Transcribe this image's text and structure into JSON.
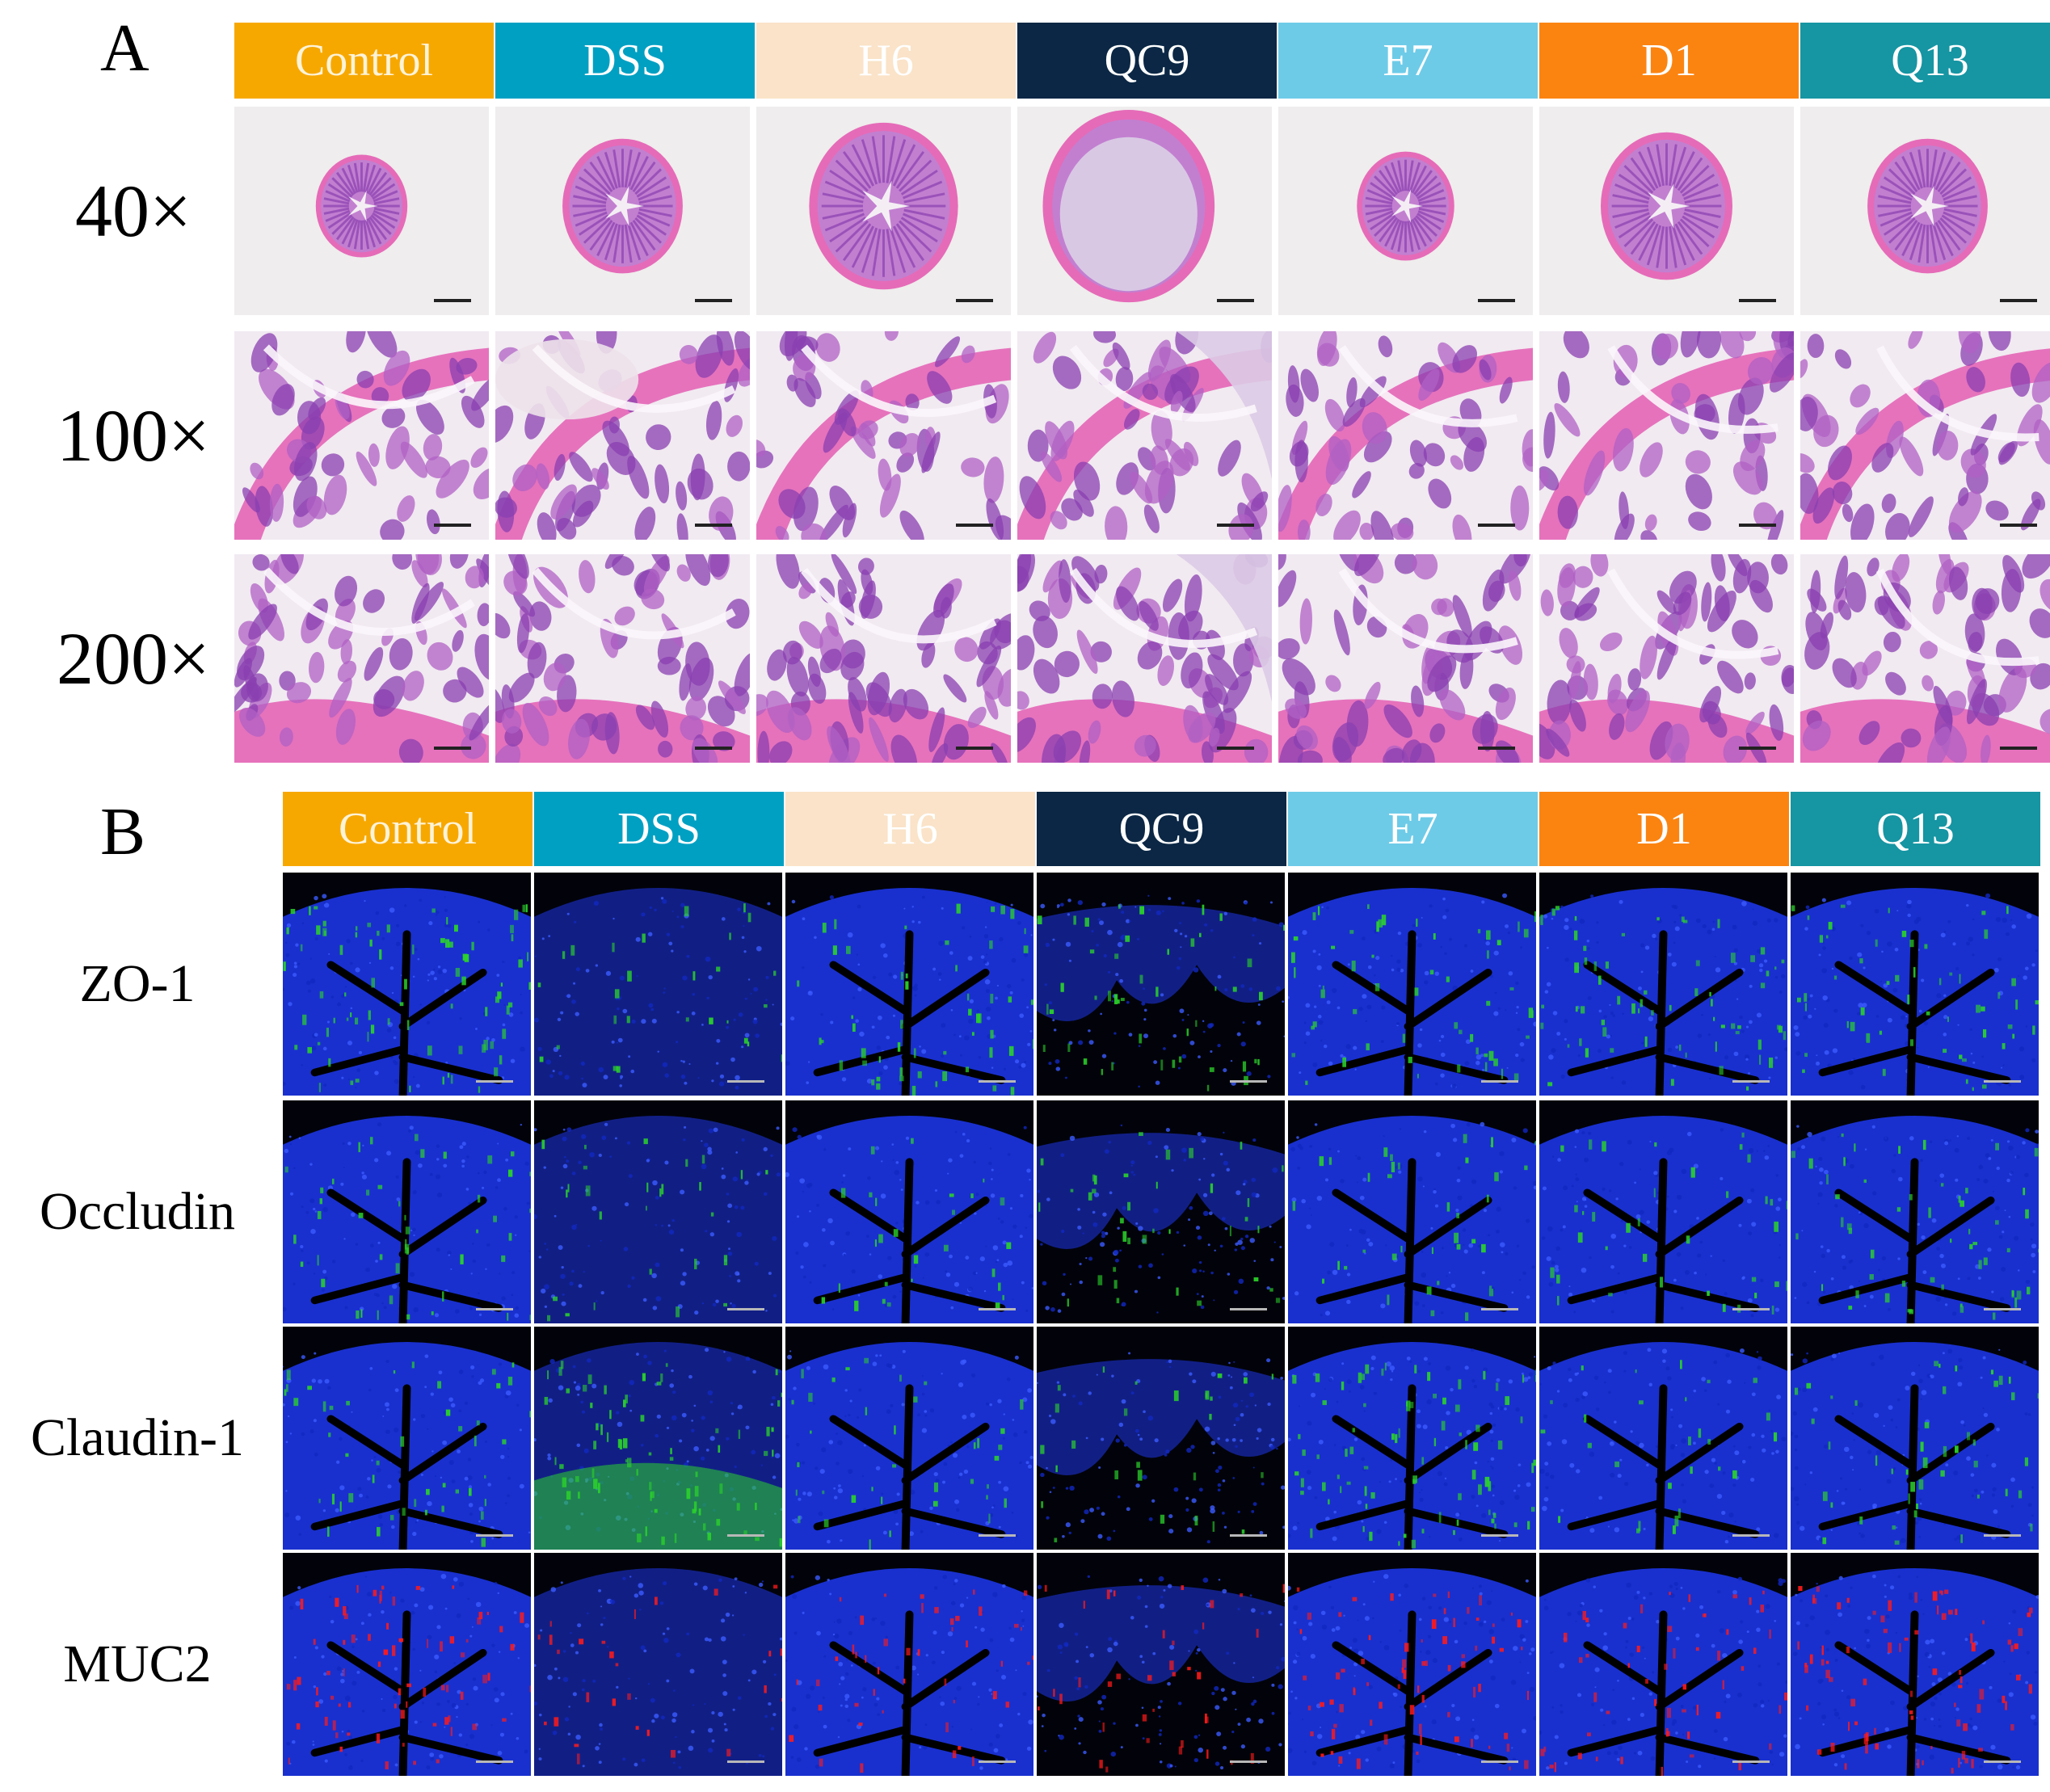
{
  "panels": [
    {
      "letter": "A",
      "groups": [
        {
          "label": "Control",
          "bg": "#f7a800",
          "fg": "#fdf3d8"
        },
        {
          "label": "DSS",
          "bg": "#00a0c3",
          "fg": "#ffffff"
        },
        {
          "label": "H6",
          "bg": "#fae3c8",
          "fg": "#ffffff"
        },
        {
          "label": "QC9",
          "bg": "#0b2745",
          "fg": "#ffffff"
        },
        {
          "label": "E7",
          "bg": "#6ecbe8",
          "fg": "#ffffff"
        },
        {
          "label": "D1",
          "bg": "#fb8411",
          "fg": "#ffffff"
        },
        {
          "label": "Q13",
          "bg": "#1695a3",
          "fg": "#ffffff"
        }
      ],
      "rows": [
        "40×",
        "100×",
        "200×"
      ],
      "stain": "H&E"
    },
    {
      "letter": "B",
      "groups": [
        {
          "label": "Control",
          "bg": "#f7a800",
          "fg": "#fdf3d8"
        },
        {
          "label": "DSS",
          "bg": "#00a0c3",
          "fg": "#ffffff"
        },
        {
          "label": "H6",
          "bg": "#fae3c8",
          "fg": "#ffffff"
        },
        {
          "label": "QC9",
          "bg": "#0b2745",
          "fg": "#ffffff"
        },
        {
          "label": "E7",
          "bg": "#6ecbe8",
          "fg": "#ffffff"
        },
        {
          "label": "D1",
          "bg": "#fb8411",
          "fg": "#ffffff"
        },
        {
          "label": "Q13",
          "bg": "#1695a3",
          "fg": "#ffffff"
        }
      ],
      "rows": [
        "ZO-1",
        "Occludin",
        "Claudin-1",
        "MUC2"
      ],
      "row_signal_colors": [
        "#2bd22b",
        "#2bd22b",
        "#2bd22b",
        "#ff1a1a"
      ],
      "stain": "immunofluorescence"
    }
  ],
  "colors": {
    "he_background": "#efeded",
    "he_pink": "#e56bb8",
    "he_purple": "#8a3fb0",
    "if_background": "#02030a",
    "if_nuclei_blue": "#1f3cff"
  }
}
